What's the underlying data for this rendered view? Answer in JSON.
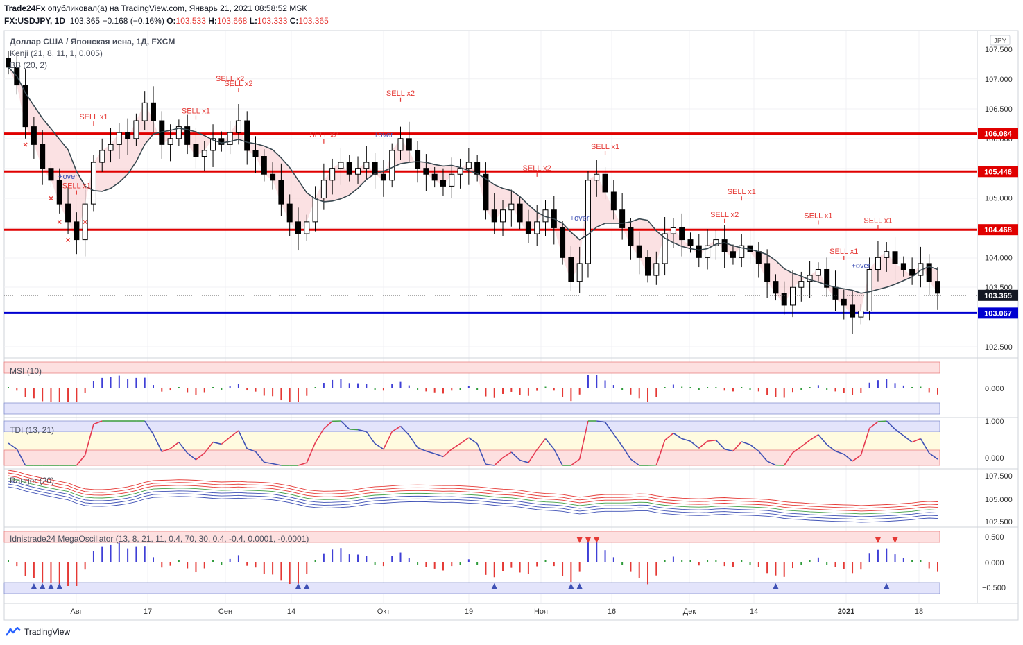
{
  "header": {
    "publisher": "Trade24Fx",
    "published_text": " опубликовал(а) на TradingView.com, Январь 21, 2021 08:58:52 MSK",
    "symbol": "FX:USDJPY, 1D",
    "last": "103.365",
    "change": "−0.168 (−0.16%)",
    "o_label": "O:",
    "o_value": "103.533",
    "h_label": "H:",
    "h_value": "103.668",
    "l_label": "L:",
    "l_value": "103.333",
    "c_label": "C:",
    "c_value": "103.365"
  },
  "main_pane": {
    "title": "Доллар США / Японская иена, 1Д, FXCM",
    "indicators": [
      "Kenji (21, 8, 11, 1, 0.005)",
      "BB (20, 2)"
    ],
    "currency_badge": "JPY"
  },
  "panes": {
    "msi": "MSI (10)",
    "tdi": "TDI (13, 21)",
    "ranger": "Ranger (20)",
    "mega": "Idnistrade24 MegaOscillator (13, 8, 21, 11, 0.4, 70, 30, 0.4, -0.4, 0.0001, -0.0001)"
  },
  "x_axis_labels": [
    "Авг",
    "17",
    "Сен",
    "14",
    "Окт",
    "19",
    "Ноя",
    "16",
    "Дек",
    "14",
    "2021",
    "18"
  ],
  "tradingview_label": "TradingView",
  "colors": {
    "bull": "#ffffff",
    "bear": "#000000",
    "support_red": "#e00000",
    "support_blue": "#0000d0",
    "sell_signal": "#e53935",
    "buy_signal": "#3f51b5"
  },
  "chart_data": {
    "type": "candlestick",
    "title": "Доллар США / Японская иена, 1Д, FXCM",
    "y_axis_ticks": [
      "107.500",
      "107.000",
      "106.500",
      "106.000",
      "105.500",
      "105.000",
      "104.500",
      "104.000",
      "103.500",
      "102.500"
    ],
    "ylim": [
      102.2,
      107.7
    ],
    "horizontal_levels": [
      {
        "value": 106.084,
        "label": "106.084",
        "color": "red"
      },
      {
        "value": 105.446,
        "label": "105.446",
        "color": "red"
      },
      {
        "value": 104.468,
        "label": "104.468",
        "color": "red"
      },
      {
        "value": 103.067,
        "label": "103.067",
        "color": "blue"
      }
    ],
    "last_price": {
      "value": 103.365,
      "label": "103.365"
    },
    "close_series": [
      107.2,
      106.9,
      106.2,
      105.9,
      105.5,
      105.3,
      104.9,
      104.6,
      104.3,
      104.9,
      105.6,
      105.8,
      105.9,
      106.1,
      106.0,
      106.3,
      106.6,
      106.3,
      105.9,
      106.0,
      106.2,
      105.9,
      105.7,
      105.8,
      106.0,
      105.9,
      106.1,
      106.3,
      105.8,
      105.7,
      105.4,
      105.3,
      104.9,
      104.6,
      104.4,
      104.6,
      105.0,
      105.3,
      105.5,
      105.6,
      105.4,
      105.5,
      105.6,
      105.4,
      105.3,
      105.8,
      106.0,
      105.8,
      105.5,
      105.4,
      105.3,
      105.2,
      105.4,
      105.5,
      105.6,
      105.4,
      104.8,
      104.6,
      104.8,
      104.9,
      104.6,
      104.4,
      104.6,
      104.8,
      104.5,
      104.0,
      103.6,
      103.9,
      105.3,
      105.4,
      105.1,
      104.8,
      104.5,
      104.2,
      104.0,
      103.7,
      103.9,
      104.4,
      104.5,
      104.3,
      104.2,
      104.0,
      104.2,
      104.3,
      104.1,
      104.0,
      104.2,
      104.1,
      103.9,
      103.6,
      103.4,
      103.2,
      103.5,
      103.6,
      103.7,
      103.8,
      103.5,
      103.3,
      103.2,
      103.0,
      103.1,
      103.8,
      104.0,
      104.1,
      103.9,
      103.8,
      103.7,
      103.9,
      103.6,
      103.4
    ]
  }
}
